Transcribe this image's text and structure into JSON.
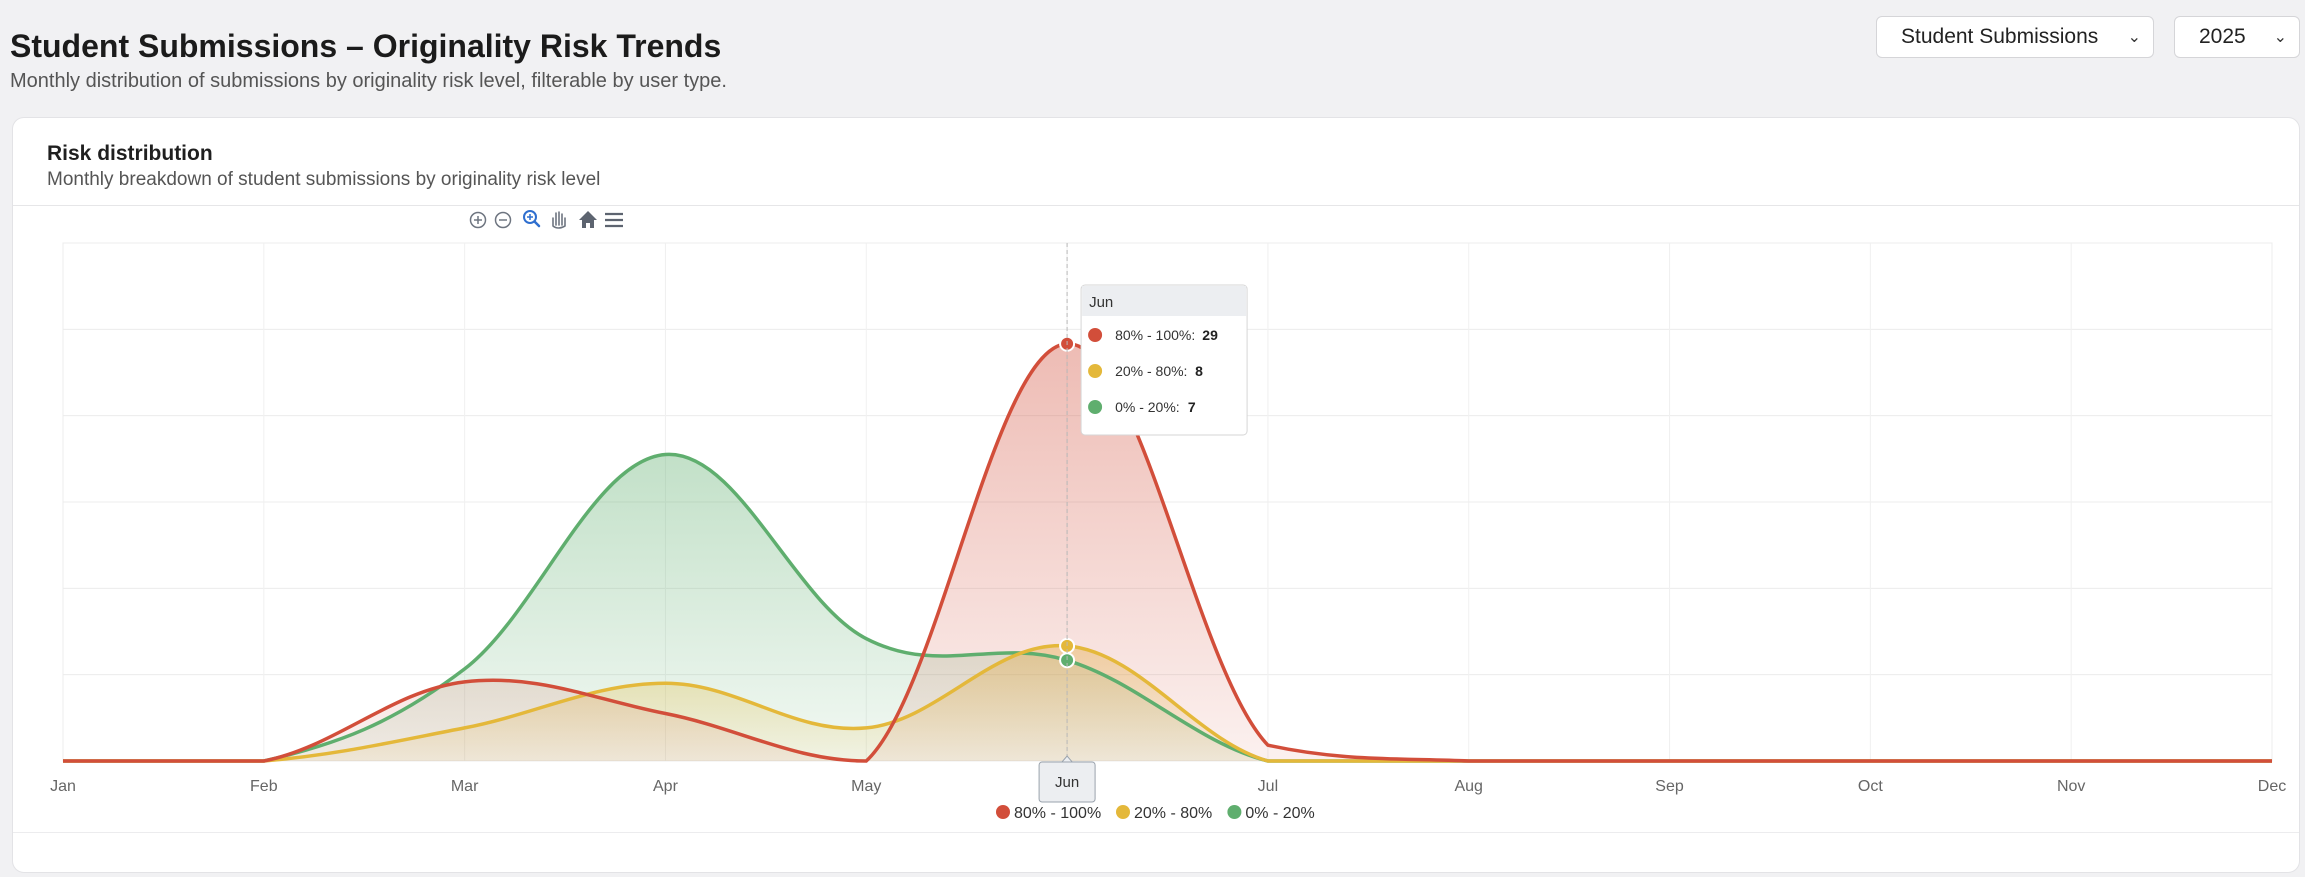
{
  "header": {
    "title": "Student Submissions – Originality Risk Trends",
    "subtitle": "Monthly distribution of submissions by originality risk level, filterable by user type."
  },
  "filters": {
    "user_type": "Student Submissions",
    "year": "2025"
  },
  "card": {
    "title": "Risk distribution",
    "subtitle": "Monthly breakdown of student submissions by originality risk level"
  },
  "toolbar": {
    "icons": [
      "zoom-in-icon",
      "zoom-out-icon",
      "selection-zoom-icon",
      "pan-icon",
      "home-icon",
      "menu-icon"
    ]
  },
  "tooltip": {
    "title": "Jun",
    "rows": [
      {
        "label": "80% - 100%:",
        "value": "29"
      },
      {
        "label": "20% - 80%:",
        "value": "8"
      },
      {
        "label": "0% - 20%:",
        "value": "7"
      }
    ],
    "x_label": "Jun"
  },
  "chart_data": {
    "type": "area",
    "categories": [
      "Jan",
      "Feb",
      "Mar",
      "Apr",
      "May",
      "Jun",
      "Jul",
      "Aug",
      "Sep",
      "Oct",
      "Nov",
      "Dec"
    ],
    "ylim": [
      0,
      36
    ],
    "grid": true,
    "legend_position": "bottom",
    "series": [
      {
        "name": "80% - 100%",
        "color": "#d24e3a",
        "values": [
          0,
          0,
          5.5,
          3.3,
          0,
          29,
          1.1,
          0,
          0,
          0,
          0,
          0
        ]
      },
      {
        "name": "20% - 80%",
        "color": "#e4b83a",
        "values": [
          0,
          0,
          2.3,
          5.4,
          2.3,
          8,
          0,
          0,
          0,
          0,
          0,
          0
        ]
      },
      {
        "name": "0% - 20%",
        "color": "#5fae6e",
        "values": [
          0,
          0,
          6.4,
          21.3,
          8.5,
          7,
          0,
          0,
          0,
          0,
          0,
          0
        ]
      }
    ],
    "highlight_index": 5
  }
}
